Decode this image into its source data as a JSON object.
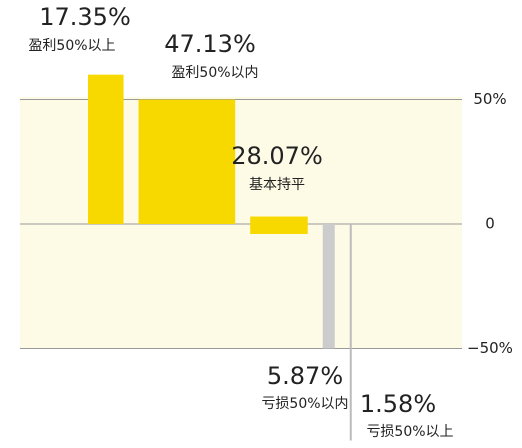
{
  "chart_data": {
    "type": "range-bar",
    "categories": [
      "盈利50%以上",
      "盈利50%以内",
      "基本持平",
      "亏损50%以内",
      "亏损50%以上"
    ],
    "values": [
      17.35,
      47.13,
      28.07,
      5.87,
      1.58
    ],
    "value_labels": [
      "17.35%",
      "47.13%",
      "28.07%",
      "5.87%",
      "1.58%"
    ],
    "ranges": [
      [
        0,
        60
      ],
      [
        0,
        50
      ],
      [
        -4,
        3
      ],
      [
        -50,
        0
      ],
      [
        -87,
        0
      ]
    ],
    "colors": [
      "#f7d900",
      "#f7d900",
      "#f7d900",
      "#cccccc",
      "#bbbbbb"
    ],
    "ylim": [
      -90,
      90
    ],
    "yticks": [
      {
        "value": 50,
        "label": "50%"
      },
      0,
      {
        "value": -50,
        "label": "−50%"
      }
    ]
  }
}
